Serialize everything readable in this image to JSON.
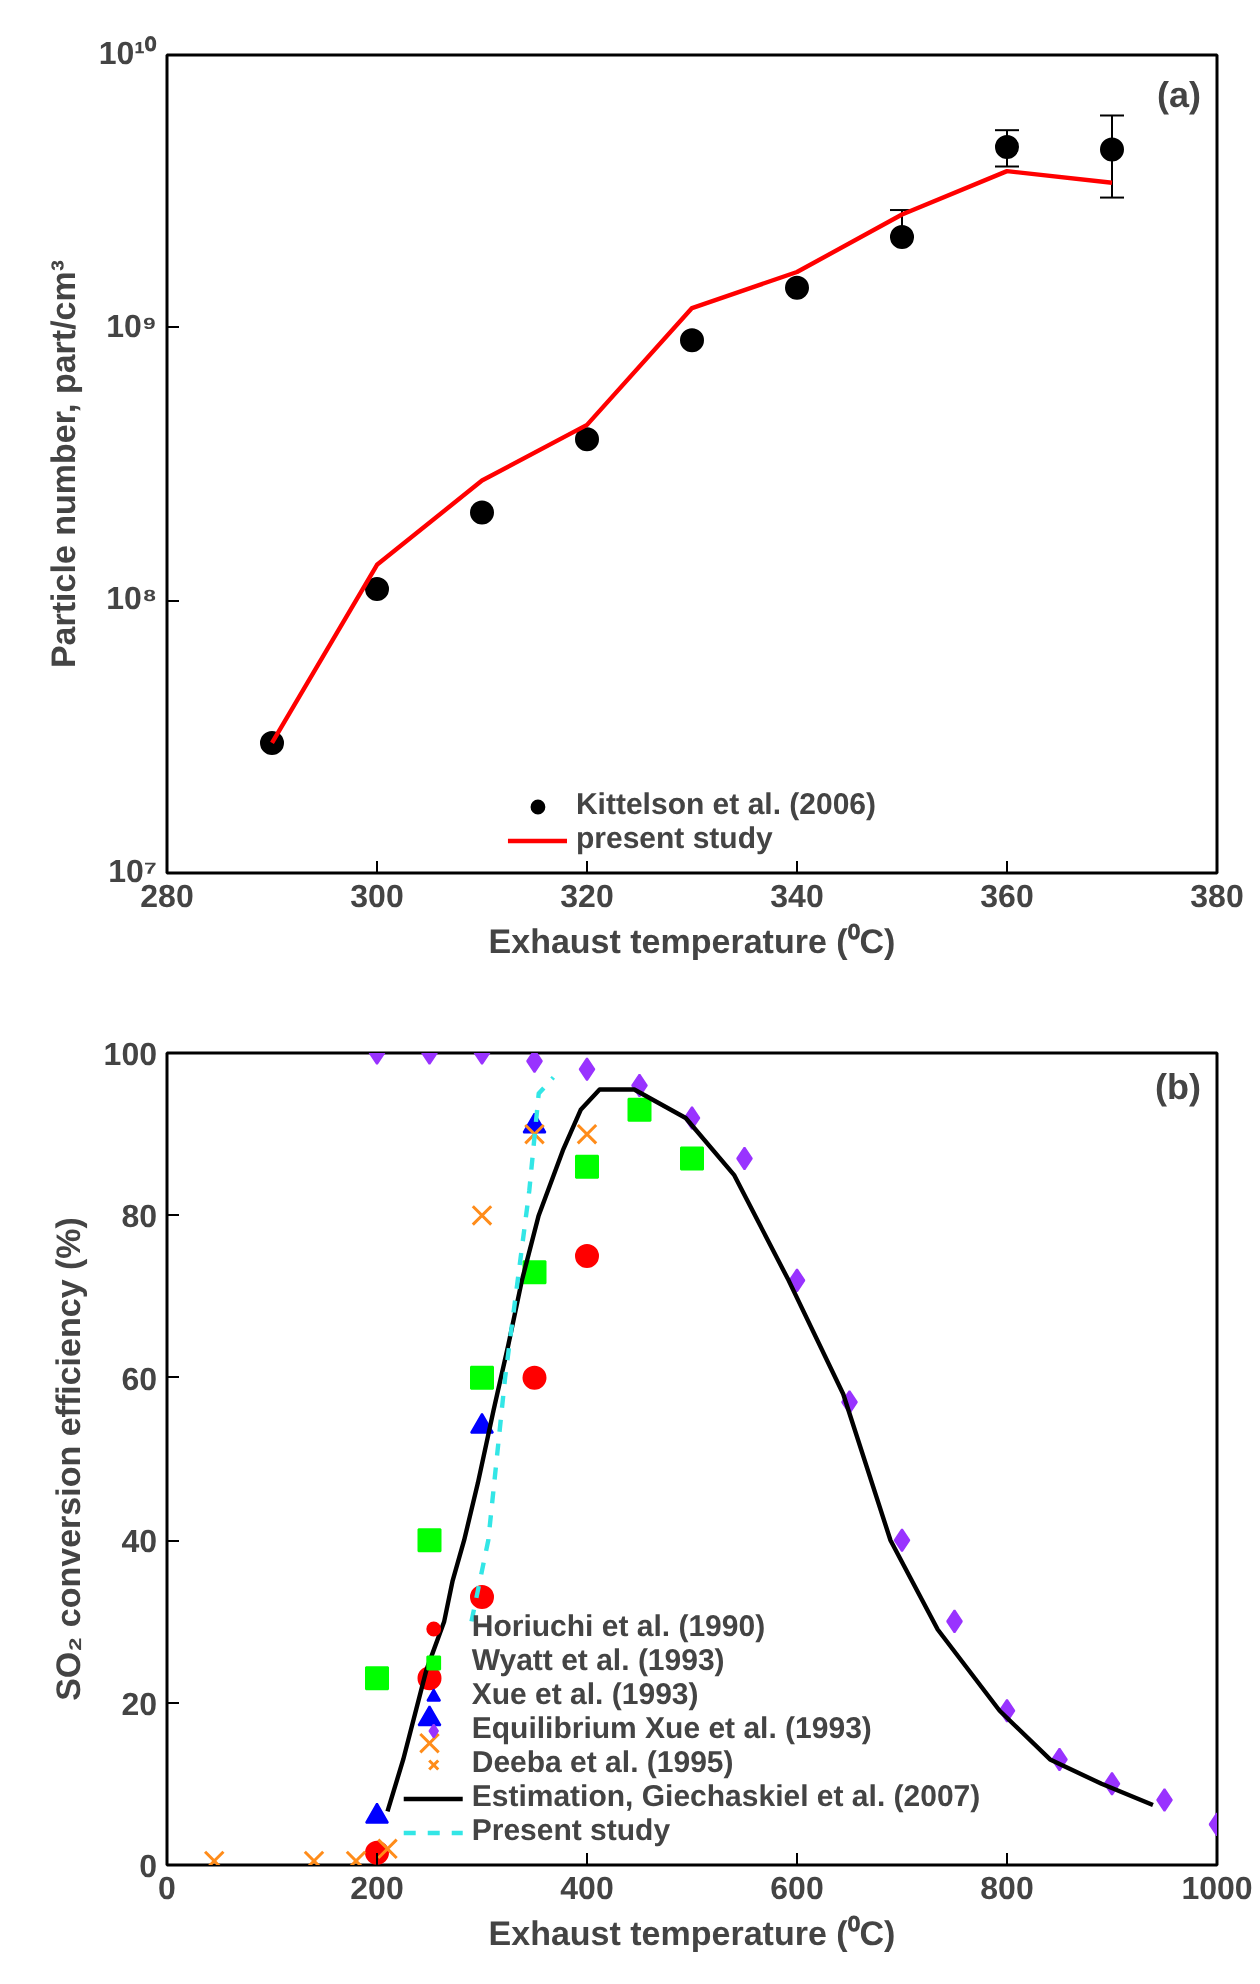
{
  "chart_data": [
    {
      "type": "scatter",
      "xlabel": "Exhaust temperature (⁰C)",
      "ylabel": "Particle number, part/cm³",
      "annotations": [
        "(a)"
      ],
      "xlim": [
        280,
        380
      ],
      "xticks": [
        280,
        300,
        320,
        340,
        360,
        380
      ],
      "ylim": [
        10000000,
        10000000000
      ],
      "yticks": [
        {
          "value": 10000000,
          "label": "10⁷"
        },
        {
          "value": 100000000,
          "label": "10⁸"
        },
        {
          "value": 1000000000,
          "label": "10⁹"
        },
        {
          "value": 10000000000,
          "label": "10¹⁰"
        }
      ],
      "log": "y",
      "grid": false,
      "legend": "bottom",
      "series": [
        {
          "name": "Kittelson et al. (2006)",
          "marker": "circle",
          "color": "#000000",
          "x": [
            290,
            300,
            310,
            320,
            330,
            340,
            350,
            360,
            370
          ],
          "values": [
            30000000,
            110000000,
            210000000,
            390000000,
            900000000,
            1400000000,
            2150000000,
            4600000000,
            4500000000
          ],
          "errors": [
            null,
            null,
            null,
            null,
            null,
            null,
            [
              2150000000,
              2700000000
            ],
            [
              3900000000,
              5300000000
            ],
            [
              3000000000,
              6000000000
            ]
          ]
        },
        {
          "name": "present study",
          "type": "line",
          "line_style": "solid",
          "color": "#ff0000",
          "x": [
            290,
            300,
            310,
            320,
            330,
            340,
            350,
            360,
            370
          ],
          "values": [
            30000000,
            135000000,
            275000000,
            440000000,
            1180000000,
            1600000000,
            2600000000,
            3750000000,
            3400000000
          ]
        }
      ]
    },
    {
      "type": "scatter",
      "xlabel": "Exhaust temperature (⁰C)",
      "ylabel": "SO₂ conversion efficiency (%)",
      "annotations": [
        "(b)"
      ],
      "xlim": [
        0,
        1000
      ],
      "xticks": [
        0,
        200,
        400,
        600,
        800,
        1000
      ],
      "ylim": [
        0,
        100
      ],
      "yticks": [
        0,
        20,
        40,
        60,
        80,
        100
      ],
      "grid": false,
      "legend": "bottom",
      "series": [
        {
          "name": "Horiuchi et al. (1990)",
          "marker": "circle",
          "color": "#ff0000",
          "x": [
            200,
            250,
            300,
            350,
            400
          ],
          "values": [
            1.5,
            23,
            33,
            60,
            75
          ]
        },
        {
          "name": "Wyatt et al. (1993)",
          "marker": "square",
          "color": "#00ff00",
          "x": [
            200,
            250,
            300,
            350,
            400,
            450,
            500
          ],
          "values": [
            23,
            40,
            60,
            73,
            86,
            93,
            87
          ]
        },
        {
          "name": "Xue et al. (1993)",
          "marker": "triangle",
          "color": "#0000ff",
          "x": [
            200,
            250,
            300,
            350
          ],
          "values": [
            6,
            18,
            54,
            91
          ]
        },
        {
          "name": "Equilibrium Xue et al. (1993)",
          "marker": "diamond",
          "color": "#9933ff",
          "x": [
            200,
            250,
            300,
            350,
            400,
            450,
            500,
            550,
            600,
            650,
            700,
            750,
            800,
            850,
            900,
            950,
            1000
          ],
          "values": [
            100,
            100,
            100,
            99,
            98,
            96,
            92,
            87,
            72,
            57,
            40,
            30,
            19,
            13,
            10,
            8,
            5
          ]
        },
        {
          "name": "Deeba et al. (1995)",
          "marker": "cross",
          "color": "#ff8c1a",
          "x": [
            45,
            140,
            180,
            210,
            250,
            300,
            350,
            400
          ],
          "values": [
            0.5,
            0.5,
            0.5,
            2,
            15,
            80,
            90,
            90
          ]
        },
        {
          "name": "Estimation, Giechaskiel et al. (2007)",
          "type": "line",
          "line_style": "solid",
          "color": "#000000",
          "x": [
            210,
            225,
            247,
            264,
            272,
            283,
            296,
            311,
            325,
            338,
            354,
            377,
            394,
            412,
            445,
            494,
            540,
            592,
            644,
            689,
            734,
            793,
            841,
            890,
            939
          ],
          "values": [
            6.6,
            13,
            24,
            30,
            35,
            40,
            47,
            56,
            64,
            72,
            80,
            88,
            93,
            95.5,
            95.5,
            92,
            85,
            72,
            58,
            40,
            29,
            19,
            13,
            10,
            7.4
          ]
        },
        {
          "name": "Present study",
          "type": "line",
          "line_style": "dashed",
          "color": "#33e6e6",
          "x": [
            290,
            306,
            322,
            335,
            345,
            354,
            368
          ],
          "values": [
            30,
            40,
            60,
            73,
            83,
            95,
            97
          ]
        }
      ]
    }
  ]
}
